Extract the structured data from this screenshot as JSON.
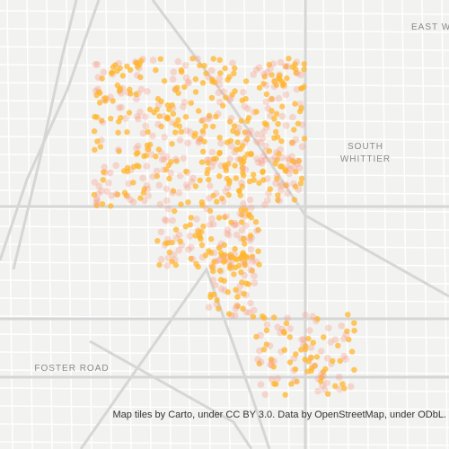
{
  "map": {
    "labels": [
      "EAST W",
      "SOUTH",
      "WHITTIER",
      "FOSTER ROAD"
    ],
    "attribution": "Map tiles by Carto, under CC BY 3.0. Data by OpenStreetMap, under ODbL."
  }
}
